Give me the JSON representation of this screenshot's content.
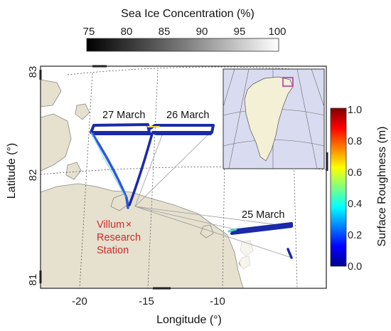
{
  "sic_colorbar": {
    "title": "Sea Ice Concentration (%)",
    "ticks": [
      "75",
      "80",
      "85",
      "90",
      "95",
      "100"
    ]
  },
  "roughness_colorbar": {
    "label": "Surface Roughness (m)",
    "ticks": [
      "1.0",
      "0.8",
      "0.6",
      "0.4",
      "0.2",
      "0.0"
    ]
  },
  "map": {
    "y_axis_label": "Latitude (°)",
    "x_axis_label": "Longitude (°)",
    "lat_ticks": [
      "83",
      "82",
      "81"
    ],
    "lon_ticks": [
      "-20",
      "-15",
      "-10"
    ],
    "flight_labels": [
      "27 March",
      "26 March",
      "25 March"
    ],
    "station": {
      "marker": "×",
      "name_lines": [
        "Villum",
        "Research",
        "Station"
      ]
    }
  },
  "colors": {
    "land": "#e6e0cf",
    "station_text": "#cc2b2b",
    "inset_ocean": "#d9dcf0",
    "inset_box": "#c0399c",
    "track_dark": "#1a2aa8"
  }
}
